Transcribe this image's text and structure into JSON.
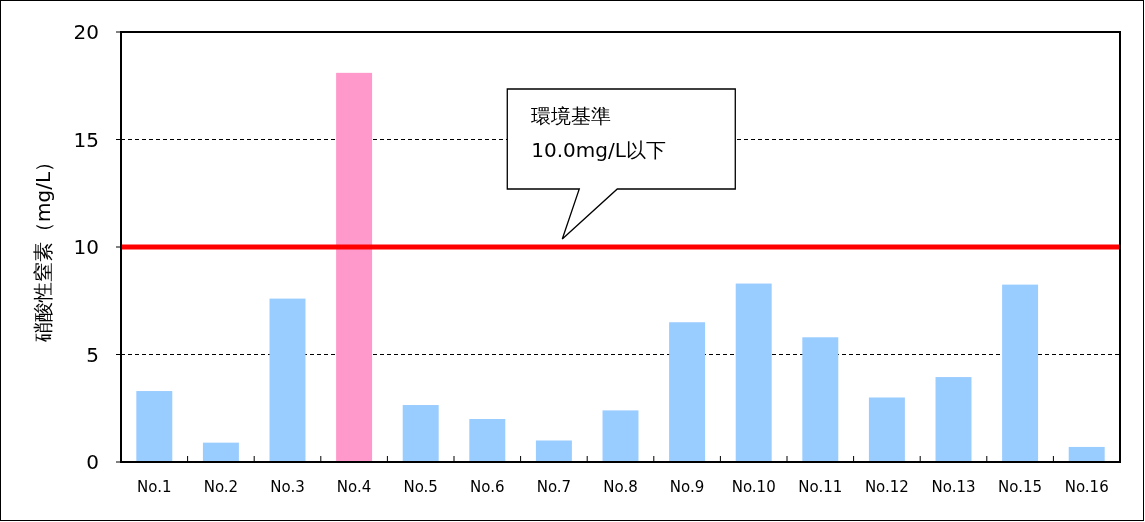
{
  "chart_data": {
    "type": "bar",
    "ylabel": "硝酸性窒素（mg/L）",
    "categories": [
      "No.1",
      "No.2",
      "No.3",
      "No.4",
      "No.5",
      "No.6",
      "No.7",
      "No.8",
      "No.9",
      "No.10",
      "No.11",
      "No.12",
      "No.13",
      "No.15",
      "No.16"
    ],
    "values": [
      3.3,
      0.9,
      7.6,
      18.1,
      2.65,
      2.0,
      1.0,
      2.4,
      6.5,
      8.3,
      5.8,
      3.0,
      3.95,
      8.25,
      0.7
    ],
    "colors": [
      "#99ccff",
      "#99ccff",
      "#99ccff",
      "#ff99cc",
      "#99ccff",
      "#99ccff",
      "#99ccff",
      "#99ccff",
      "#99ccff",
      "#99ccff",
      "#99ccff",
      "#99ccff",
      "#99ccff",
      "#99ccff",
      "#99ccff"
    ],
    "ylim": [
      0,
      20
    ],
    "yticks": [
      0,
      5,
      10,
      15,
      20
    ],
    "grid": "y",
    "ref_lines": [
      {
        "axis": "y",
        "value": 10,
        "color": "#ff0000"
      }
    ],
    "annotations": [
      "環境基準 10.0mg/L以下"
    ]
  }
}
